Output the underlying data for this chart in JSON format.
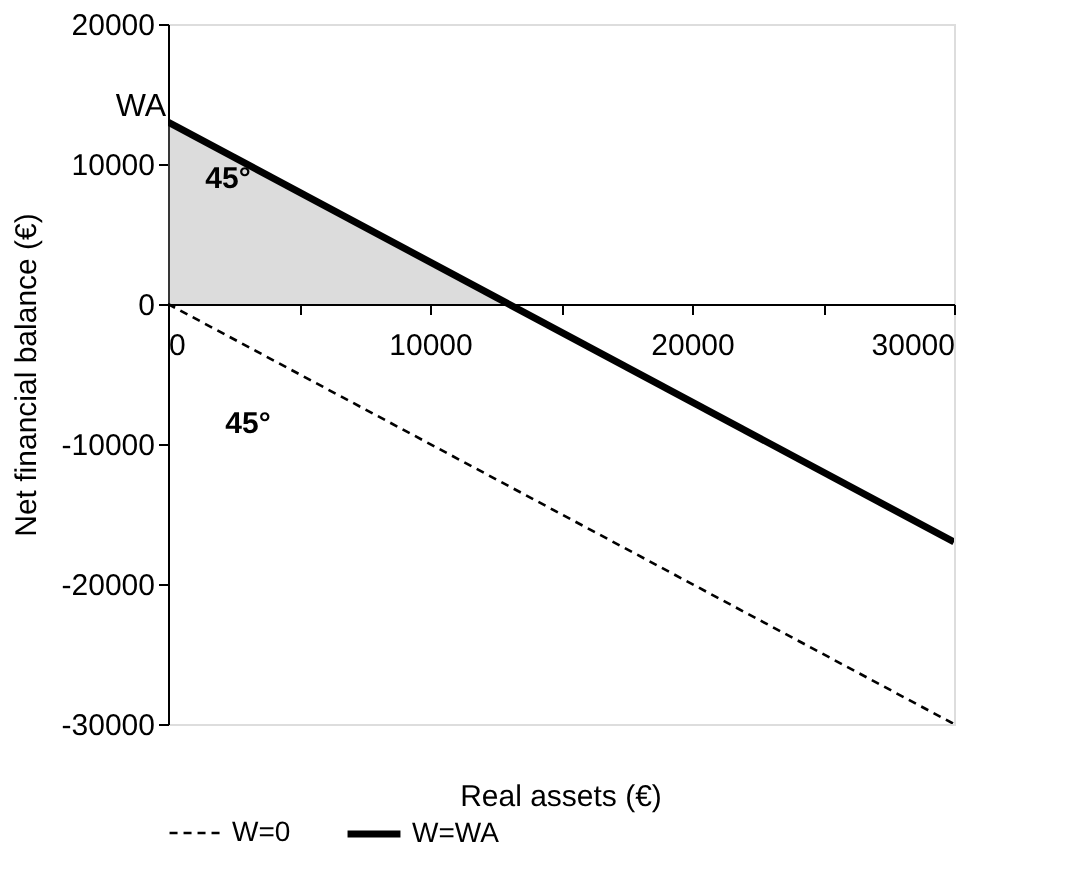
{
  "chart_data": {
    "type": "line",
    "xlabel": "Real assets (€)",
    "ylabel": "Net financial balance (€)",
    "series": [
      {
        "type": "area",
        "color": "#9a9a9a",
        "x": [
          0,
          13000
        ],
        "values": [
          13000,
          0
        ]
      },
      {
        "name": "W=0",
        "color": "#000000",
        "line_style": "dashed",
        "x": [
          0,
          30000
        ],
        "values": [
          0,
          -30000
        ]
      },
      {
        "name": "W=WA",
        "color": "#000000",
        "line_style": "solid",
        "x": [
          0,
          30000
        ],
        "values": [
          13000,
          -17000
        ]
      }
    ],
    "xlim": [
      0,
      30000
    ],
    "ylim": [
      -30000,
      20000
    ],
    "xticks": [
      0,
      {
        "value": 5000,
        "label": null
      },
      10000,
      {
        "value": 15000,
        "label": null
      },
      20000,
      {
        "value": 25000,
        "label": null
      },
      30000
    ],
    "yticks": [
      -30000,
      -20000,
      -10000,
      0,
      10000,
      20000
    ],
    "annotations": [
      {
        "text": "WA",
        "x": 0,
        "y": 13000
      },
      "45°",
      "45°"
    ],
    "grid": false,
    "legend": "bottom",
    "marker": "none"
  }
}
